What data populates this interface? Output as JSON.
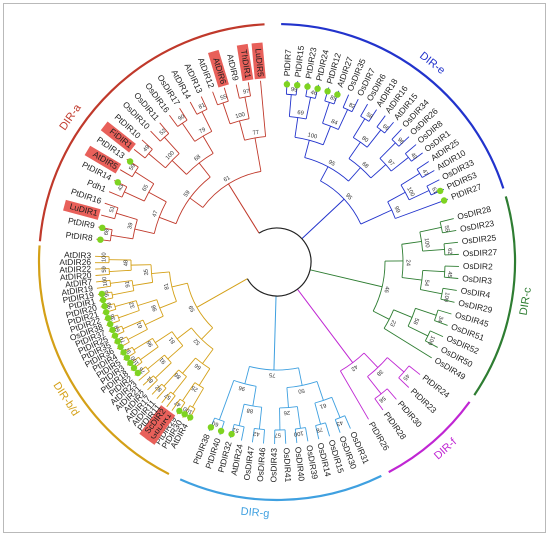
{
  "title": "",
  "colors": {
    "DIR-a": "#c0392b",
    "DIR-e": "#2233cc",
    "DIR-c": "#2e7d32",
    "DIR-f": "#c026d3",
    "DIR-g": "#3fa0e0",
    "DIR-b/d": "#d4a017",
    "highlight": "#e8605a",
    "marker": "#7ed321",
    "root": "#222222"
  },
  "clades": [
    {
      "name": "DIR-a",
      "start": -175,
      "end": -93,
      "labelAngle": -145
    },
    {
      "name": "DIR-e",
      "start": -89,
      "end": -18,
      "labelAngle": -52
    },
    {
      "name": "DIR-c",
      "start": -16,
      "end": 34,
      "labelAngle": 9
    },
    {
      "name": "DIR-f",
      "start": 36,
      "end": 62,
      "labelAngle": 48
    },
    {
      "name": "DIR-g",
      "start": 64,
      "end": 114,
      "labelAngle": 95
    },
    {
      "name": "DIR-b/d",
      "start": 117,
      "end": 184,
      "labelAngle": 147
    }
  ],
  "leaves": [
    {
      "name": "PtDIR8",
      "clade": "DIR-a",
      "marker": true,
      "highlight": false
    },
    {
      "name": "PtDIR9",
      "clade": "DIR-a",
      "marker": true,
      "highlight": false
    },
    {
      "name": "LuDIR1",
      "clade": "DIR-a",
      "marker": false,
      "highlight": true
    },
    {
      "name": "PtDIR16",
      "clade": "DIR-a",
      "marker": false,
      "highlight": false
    },
    {
      "name": "Pdh1",
      "clade": "DIR-a",
      "marker": false,
      "highlight": false
    },
    {
      "name": "PtDIR14",
      "clade": "DIR-a",
      "marker": true,
      "highlight": false
    },
    {
      "name": "AtDIR5",
      "clade": "DIR-a",
      "marker": false,
      "highlight": true
    },
    {
      "name": "PtDIR13",
      "clade": "DIR-a",
      "marker": true,
      "highlight": false
    },
    {
      "name": "FiDIR1",
      "clade": "DIR-a",
      "marker": false,
      "highlight": true
    },
    {
      "name": "PtDIR10",
      "clade": "DIR-a",
      "marker": false,
      "highlight": false
    },
    {
      "name": "OsDIR10",
      "clade": "DIR-a",
      "marker": false,
      "highlight": false
    },
    {
      "name": "OsDIR11",
      "clade": "DIR-a",
      "marker": false,
      "highlight": false
    },
    {
      "name": "OsDIR16",
      "clade": "DIR-a",
      "marker": false,
      "highlight": false
    },
    {
      "name": "OsDIR17",
      "clade": "DIR-a",
      "marker": false,
      "highlight": false
    },
    {
      "name": "AtDIR14",
      "clade": "DIR-a",
      "marker": false,
      "highlight": false
    },
    {
      "name": "AtDIR13",
      "clade": "DIR-a",
      "marker": false,
      "highlight": false
    },
    {
      "name": "AtDIR12",
      "clade": "DIR-a",
      "marker": false,
      "highlight": false
    },
    {
      "name": "AtDIR6",
      "clade": "DIR-a",
      "marker": false,
      "highlight": true
    },
    {
      "name": "AtDIR9",
      "clade": "DIR-a",
      "marker": false,
      "highlight": false
    },
    {
      "name": "ThDIR1",
      "clade": "DIR-a",
      "marker": false,
      "highlight": true
    },
    {
      "name": "LuDIR5",
      "clade": "DIR-a",
      "marker": false,
      "highlight": true
    },
    {
      "name": "PtDIR7",
      "clade": "DIR-e",
      "marker": true,
      "highlight": false
    },
    {
      "name": "PtDIR15",
      "clade": "DIR-e",
      "marker": true,
      "highlight": false
    },
    {
      "name": "PtDIR23",
      "clade": "DIR-e",
      "marker": true,
      "highlight": false
    },
    {
      "name": "PtDIR24",
      "clade": "DIR-e",
      "marker": true,
      "highlight": false
    },
    {
      "name": "PtDIR12",
      "clade": "DIR-e",
      "marker": true,
      "highlight": false
    },
    {
      "name": "AtDIR27",
      "clade": "DIR-e",
      "marker": true,
      "highlight": false
    },
    {
      "name": "OsDIR35",
      "clade": "DIR-e",
      "marker": false,
      "highlight": false
    },
    {
      "name": "OsDIR7",
      "clade": "DIR-e",
      "marker": false,
      "highlight": false
    },
    {
      "name": "OsDIR6",
      "clade": "DIR-e",
      "marker": false,
      "highlight": false
    },
    {
      "name": "AtDIR18",
      "clade": "DIR-e",
      "marker": false,
      "highlight": false
    },
    {
      "name": "AtDIR16",
      "clade": "DIR-e",
      "marker": false,
      "highlight": false
    },
    {
      "name": "AtDIR15",
      "clade": "DIR-e",
      "marker": false,
      "highlight": false
    },
    {
      "name": "OsDIR34",
      "clade": "DIR-e",
      "marker": false,
      "highlight": false
    },
    {
      "name": "OsDIR26",
      "clade": "DIR-e",
      "marker": false,
      "highlight": false
    },
    {
      "name": "OsDIR8",
      "clade": "DIR-e",
      "marker": false,
      "highlight": false
    },
    {
      "name": "OsDIR1",
      "clade": "DIR-e",
      "marker": false,
      "highlight": false
    },
    {
      "name": "AtDIR25",
      "clade": "DIR-e",
      "marker": false,
      "highlight": false
    },
    {
      "name": "AtDIR10",
      "clade": "DIR-e",
      "marker": false,
      "highlight": false
    },
    {
      "name": "OsDIR33",
      "clade": "DIR-e",
      "marker": false,
      "highlight": false
    },
    {
      "name": "PtDIR53",
      "clade": "DIR-e",
      "marker": true,
      "highlight": false
    },
    {
      "name": "PtDIR27",
      "clade": "DIR-e",
      "marker": true,
      "highlight": false
    },
    {
      "name": "OsDIR28",
      "clade": "DIR-c",
      "marker": false,
      "highlight": false
    },
    {
      "name": "OsDIR23",
      "clade": "DIR-c",
      "marker": false,
      "highlight": false
    },
    {
      "name": "OsDIR25",
      "clade": "DIR-c",
      "marker": false,
      "highlight": false
    },
    {
      "name": "OsDIR27",
      "clade": "DIR-c",
      "marker": false,
      "highlight": false
    },
    {
      "name": "OsDIR2",
      "clade": "DIR-c",
      "marker": false,
      "highlight": false
    },
    {
      "name": "OsDIR3",
      "clade": "DIR-c",
      "marker": false,
      "highlight": false
    },
    {
      "name": "OsDIR4",
      "clade": "DIR-c",
      "marker": false,
      "highlight": false
    },
    {
      "name": "OsDIR29",
      "clade": "DIR-c",
      "marker": false,
      "highlight": false
    },
    {
      "name": "OsDIR45",
      "clade": "DIR-c",
      "marker": false,
      "highlight": false
    },
    {
      "name": "OsDIR51",
      "clade": "DIR-c",
      "marker": false,
      "highlight": false
    },
    {
      "name": "OsDIR52",
      "clade": "DIR-c",
      "marker": false,
      "highlight": false
    },
    {
      "name": "OsDIR50",
      "clade": "DIR-c",
      "marker": false,
      "highlight": false
    },
    {
      "name": "OsDIR49",
      "clade": "DIR-c",
      "marker": false,
      "highlight": false
    },
    {
      "name": "PtDIR24",
      "clade": "DIR-f",
      "marker": false,
      "highlight": false
    },
    {
      "name": "PtDIR23",
      "clade": "DIR-f",
      "marker": false,
      "highlight": false
    },
    {
      "name": "PtDIR30",
      "clade": "DIR-f",
      "marker": false,
      "highlight": false
    },
    {
      "name": "PtDIR28",
      "clade": "DIR-f",
      "marker": false,
      "highlight": false
    },
    {
      "name": "PtDIR26",
      "clade": "DIR-f",
      "marker": false,
      "highlight": false
    },
    {
      "name": "OsDIR31",
      "clade": "DIR-g",
      "marker": false,
      "highlight": false
    },
    {
      "name": "OsDIR30",
      "clade": "DIR-g",
      "marker": false,
      "highlight": false
    },
    {
      "name": "OsDIR15",
      "clade": "DIR-g",
      "marker": false,
      "highlight": false
    },
    {
      "name": "OsDIR14",
      "clade": "DIR-g",
      "marker": false,
      "highlight": false
    },
    {
      "name": "OsDIR39",
      "clade": "DIR-g",
      "marker": false,
      "highlight": false
    },
    {
      "name": "OsDIR40",
      "clade": "DIR-g",
      "marker": false,
      "highlight": false
    },
    {
      "name": "OsDIR41",
      "clade": "DIR-g",
      "marker": false,
      "highlight": false
    },
    {
      "name": "OsDIR43",
      "clade": "DIR-g",
      "marker": false,
      "highlight": false
    },
    {
      "name": "OsDIR46",
      "clade": "DIR-g",
      "marker": false,
      "highlight": false
    },
    {
      "name": "OsDIR47",
      "clade": "DIR-g",
      "marker": false,
      "highlight": false
    },
    {
      "name": "AtDIR24",
      "clade": "DIR-g",
      "marker": false,
      "highlight": false
    },
    {
      "name": "PtDIR32",
      "clade": "DIR-g",
      "marker": true,
      "highlight": false
    },
    {
      "name": "PtDIR40",
      "clade": "DIR-g",
      "marker": true,
      "highlight": false
    },
    {
      "name": "PtDIR38",
      "clade": "DIR-g",
      "marker": true,
      "highlight": false
    },
    {
      "name": "AtDIR4",
      "clade": "DIR-b/d",
      "marker": true,
      "highlight": false
    },
    {
      "name": "PtDIR30",
      "clade": "DIR-b/d",
      "marker": true,
      "highlight": false
    },
    {
      "name": "PtDIR29",
      "clade": "DIR-b/d",
      "marker": true,
      "highlight": false
    },
    {
      "name": "GbDIR1",
      "clade": "DIR-b/d",
      "marker": false,
      "highlight": true
    },
    {
      "name": "ScDIR2",
      "clade": "DIR-b/d",
      "marker": false,
      "highlight": true
    },
    {
      "name": "PtDIR11",
      "clade": "DIR-b/d",
      "marker": false,
      "highlight": false
    },
    {
      "name": "AtDIR11",
      "clade": "DIR-b/d",
      "marker": false,
      "highlight": false
    },
    {
      "name": "AtDIR17",
      "clade": "DIR-b/d",
      "marker": false,
      "highlight": false
    },
    {
      "name": "AtDIR2",
      "clade": "DIR-b/d",
      "marker": false,
      "highlight": false
    },
    {
      "name": "AtDIR21",
      "clade": "DIR-b/d",
      "marker": false,
      "highlight": false
    },
    {
      "name": "AtDIR23",
      "clade": "DIR-b/d",
      "marker": false,
      "highlight": false
    },
    {
      "name": "PtDIR2",
      "clade": "DIR-b/d",
      "marker": true,
      "highlight": false
    },
    {
      "name": "PtDIR18",
      "clade": "DIR-b/d",
      "marker": true,
      "highlight": false
    },
    {
      "name": "PtDIR3",
      "clade": "DIR-b/d",
      "marker": true,
      "highlight": false
    },
    {
      "name": "PtDIR5",
      "clade": "DIR-b/d",
      "marker": true,
      "highlight": false
    },
    {
      "name": "PtDIR4",
      "clade": "DIR-b/d",
      "marker": true,
      "highlight": false
    },
    {
      "name": "PtDIR36",
      "clade": "DIR-b/d",
      "marker": true,
      "highlight": false
    },
    {
      "name": "PtDIR35",
      "clade": "DIR-b/d",
      "marker": true,
      "highlight": false
    },
    {
      "name": "PtDIR25",
      "clade": "DIR-b/d",
      "marker": true,
      "highlight": false
    },
    {
      "name": "PtDIR37",
      "clade": "DIR-b/d",
      "marker": true,
      "highlight": false
    },
    {
      "name": "OsDIR38",
      "clade": "DIR-b/d",
      "marker": true,
      "highlight": false
    },
    {
      "name": "PtDIR22",
      "clade": "DIR-b/d",
      "marker": true,
      "highlight": false
    },
    {
      "name": "PtDIR21",
      "clade": "DIR-b/d",
      "marker": true,
      "highlight": false
    },
    {
      "name": "PtDIR20",
      "clade": "DIR-b/d",
      "marker": true,
      "highlight": false
    },
    {
      "name": "PtDIR1",
      "clade": "DIR-b/d",
      "marker": true,
      "highlight": false
    },
    {
      "name": "PtDIR19",
      "clade": "DIR-b/d",
      "marker": true,
      "highlight": false
    },
    {
      "name": "AtDIR19",
      "clade": "DIR-b/d",
      "marker": false,
      "highlight": false
    },
    {
      "name": "AtDIR7",
      "clade": "DIR-b/d",
      "marker": false,
      "highlight": false
    },
    {
      "name": "AtDIR20",
      "clade": "DIR-b/d",
      "marker": false,
      "highlight": false
    },
    {
      "name": "AtDIR22",
      "clade": "DIR-b/d",
      "marker": false,
      "highlight": false
    },
    {
      "name": "AtDIR26",
      "clade": "DIR-b/d",
      "marker": false,
      "highlight": false
    },
    {
      "name": "AtDIR3",
      "clade": "DIR-b/d",
      "marker": false,
      "highlight": false
    }
  ],
  "bootstrap": {
    "DIR-a": [
      "68",
      "51",
      "39",
      "43",
      "59",
      "65",
      "47",
      "49",
      "52",
      "100",
      "90",
      "81",
      "79",
      "68",
      "59",
      "55",
      "97",
      "100",
      "77",
      "61",
      "100",
      "37"
    ],
    "DIR-e": [
      "99",
      "46",
      "69",
      "85",
      "82",
      "84",
      "100",
      "58",
      "66",
      "80",
      "96",
      "49",
      "97",
      "68",
      "95",
      "47",
      "61",
      "100",
      "99",
      "95",
      "79"
    ],
    "DIR-c": [
      "55",
      "62",
      "100",
      "45",
      "100",
      "54",
      "24",
      "34",
      "100",
      "58",
      "23",
      "46",
      "47",
      "99",
      "61",
      "79"
    ],
    "DIR-f": [
      "45",
      "58",
      "38",
      "42",
      "51",
      "88",
      "91",
      "100"
    ],
    "DIR-g": [
      "43",
      "78",
      "61",
      "100",
      "57",
      "26",
      "50",
      "42",
      "51",
      "88",
      "60",
      "96",
      "75"
    ],
    "DIR-b/d": [
      "100",
      "47",
      "25",
      "57",
      "82",
      "86",
      "66",
      "81",
      "76",
      "91",
      "100",
      "97",
      "96",
      "81",
      "52",
      "70",
      "68",
      "61",
      "36",
      "99",
      "32",
      "98",
      "95",
      "100",
      "91",
      "59",
      "100",
      "48",
      "35",
      "81",
      "59",
      "77",
      "34",
      "99",
      "92"
    ]
  }
}
